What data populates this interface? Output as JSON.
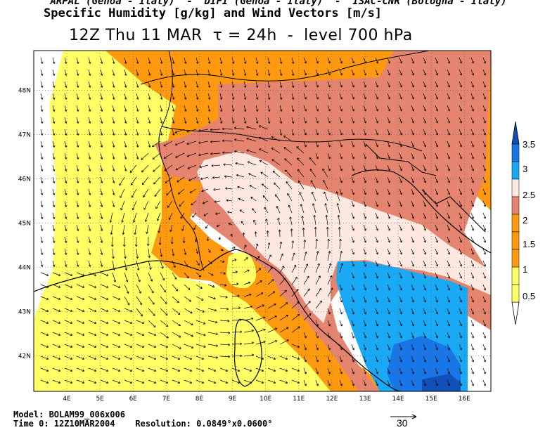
{
  "header": {
    "line1": "ARPAL (Genoa - Italy)  -  DIFI (Genoa - Italy)  -  ISAC-CNR (Bologna - Italy)",
    "line2": "Specific Humidity [g/kg] and Wind Vectors [m/s]",
    "line3": "12Z Thu 11 MAR  τ = 24h  -  level 700 hPa"
  },
  "axes": {
    "lon_labels": [
      "4E",
      "5E",
      "6E",
      "7E",
      "8E",
      "9E",
      "10E",
      "11E",
      "12E",
      "13E",
      "14E",
      "15E",
      "16E"
    ],
    "lat_labels": [
      "48N",
      "47N",
      "46N",
      "45N",
      "44N",
      "43N",
      "42N"
    ]
  },
  "colorbar": {
    "labels": [
      "3.5",
      "3",
      "2.5",
      "2",
      "1.5",
      "1",
      "0.5"
    ],
    "colors": {
      "below": "#ffffff",
      "c05_1": "#ffff66",
      "c1_15": "#ff9a10",
      "c15_2": "#e5846f",
      "c2_25": "#ffe8e0",
      "c25_3": "#1aaaf5",
      "c3_35": "#1876e6",
      "above": "#1050b8"
    }
  },
  "footer": {
    "model": "Model: BOLAM99_006x006",
    "time0": "Time 0: 12Z10MAR2004    Resolution: 0.0849°x0.0600°",
    "ref_vector": "30"
  },
  "map_data": {
    "type": "heatmap",
    "variable": "Specific Humidity",
    "units": "g/kg",
    "vector_field": "Wind Vectors",
    "vector_units": "m/s",
    "lon_range": [
      3.0,
      16.8
    ],
    "lat_range": [
      41.2,
      48.9
    ],
    "levels": [
      0.5,
      1,
      1.5,
      2,
      2.5,
      3,
      3.5
    ],
    "reference_vector_ms": 30,
    "grid": true
  }
}
